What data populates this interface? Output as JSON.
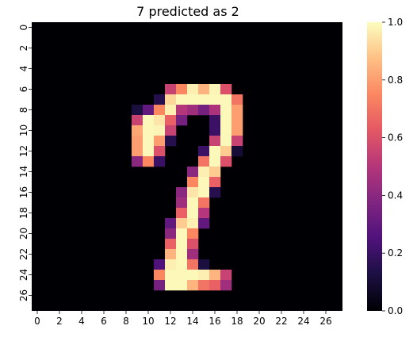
{
  "chart_data": {
    "type": "heatmap",
    "title": "7 predicted as 2",
    "rows": 28,
    "cols": 28,
    "x_tick_labels": [
      "0",
      "2",
      "4",
      "6",
      "8",
      "10",
      "12",
      "14",
      "16",
      "18",
      "20",
      "22",
      "24",
      "26"
    ],
    "y_tick_labels": [
      "0",
      "2",
      "4",
      "6",
      "8",
      "10",
      "12",
      "14",
      "16",
      "18",
      "20",
      "22",
      "24",
      "26"
    ],
    "colorbar": {
      "min": 0.0,
      "max": 1.0,
      "tick_labels": [
        "0.0",
        "0.2",
        "0.4",
        "0.6",
        "0.8",
        "1.0"
      ],
      "colormap": "magma"
    },
    "nonzero_cells": [
      {
        "row": 6,
        "col": 12,
        "value": 0.55
      },
      {
        "row": 6,
        "col": 13,
        "value": 0.75
      },
      {
        "row": 6,
        "col": 14,
        "value": 0.97
      },
      {
        "row": 6,
        "col": 15,
        "value": 0.85
      },
      {
        "row": 6,
        "col": 16,
        "value": 0.98
      },
      {
        "row": 6,
        "col": 17,
        "value": 0.6
      },
      {
        "row": 7,
        "col": 11,
        "value": 0.15
      },
      {
        "row": 7,
        "col": 12,
        "value": 0.92
      },
      {
        "row": 7,
        "col": 13,
        "value": 0.99
      },
      {
        "row": 7,
        "col": 14,
        "value": 0.99
      },
      {
        "row": 7,
        "col": 15,
        "value": 0.99
      },
      {
        "row": 7,
        "col": 16,
        "value": 0.99
      },
      {
        "row": 7,
        "col": 17,
        "value": 0.99
      },
      {
        "row": 7,
        "col": 18,
        "value": 0.7
      },
      {
        "row": 8,
        "col": 9,
        "value": 0.12
      },
      {
        "row": 8,
        "col": 10,
        "value": 0.3
      },
      {
        "row": 8,
        "col": 11,
        "value": 0.75
      },
      {
        "row": 8,
        "col": 12,
        "value": 0.97
      },
      {
        "row": 8,
        "col": 13,
        "value": 0.5
      },
      {
        "row": 8,
        "col": 14,
        "value": 0.45
      },
      {
        "row": 8,
        "col": 15,
        "value": 0.35
      },
      {
        "row": 8,
        "col": 16,
        "value": 0.48
      },
      {
        "row": 8,
        "col": 17,
        "value": 0.99
      },
      {
        "row": 8,
        "col": 18,
        "value": 0.8
      },
      {
        "row": 9,
        "col": 9,
        "value": 0.55
      },
      {
        "row": 9,
        "col": 10,
        "value": 0.99
      },
      {
        "row": 9,
        "col": 11,
        "value": 0.95
      },
      {
        "row": 9,
        "col": 12,
        "value": 0.65
      },
      {
        "row": 9,
        "col": 13,
        "value": 0.35
      },
      {
        "row": 9,
        "col": 16,
        "value": 0.2
      },
      {
        "row": 9,
        "col": 17,
        "value": 0.99
      },
      {
        "row": 9,
        "col": 18,
        "value": 0.8
      },
      {
        "row": 10,
        "col": 9,
        "value": 0.82
      },
      {
        "row": 10,
        "col": 10,
        "value": 0.99
      },
      {
        "row": 10,
        "col": 11,
        "value": 0.98
      },
      {
        "row": 10,
        "col": 12,
        "value": 0.55
      },
      {
        "row": 10,
        "col": 16,
        "value": 0.2
      },
      {
        "row": 10,
        "col": 17,
        "value": 0.99
      },
      {
        "row": 10,
        "col": 18,
        "value": 0.8
      },
      {
        "row": 11,
        "col": 9,
        "value": 0.8
      },
      {
        "row": 11,
        "col": 10,
        "value": 0.99
      },
      {
        "row": 11,
        "col": 11,
        "value": 0.8
      },
      {
        "row": 11,
        "col": 12,
        "value": 0.15
      },
      {
        "row": 11,
        "col": 16,
        "value": 0.55
      },
      {
        "row": 11,
        "col": 17,
        "value": 0.99
      },
      {
        "row": 11,
        "col": 18,
        "value": 0.55
      },
      {
        "row": 12,
        "col": 9,
        "value": 0.8
      },
      {
        "row": 12,
        "col": 10,
        "value": 0.99
      },
      {
        "row": 12,
        "col": 11,
        "value": 0.6
      },
      {
        "row": 12,
        "col": 15,
        "value": 0.2
      },
      {
        "row": 12,
        "col": 16,
        "value": 0.99
      },
      {
        "row": 12,
        "col": 17,
        "value": 0.9
      },
      {
        "row": 12,
        "col": 18,
        "value": 0.1
      },
      {
        "row": 13,
        "col": 9,
        "value": 0.4
      },
      {
        "row": 13,
        "col": 10,
        "value": 0.75
      },
      {
        "row": 13,
        "col": 11,
        "value": 0.2
      },
      {
        "row": 13,
        "col": 15,
        "value": 0.7
      },
      {
        "row": 13,
        "col": 16,
        "value": 0.99
      },
      {
        "row": 13,
        "col": 17,
        "value": 0.6
      },
      {
        "row": 14,
        "col": 14,
        "value": 0.4
      },
      {
        "row": 14,
        "col": 15,
        "value": 0.97
      },
      {
        "row": 14,
        "col": 16,
        "value": 0.9
      },
      {
        "row": 15,
        "col": 14,
        "value": 0.75
      },
      {
        "row": 15,
        "col": 15,
        "value": 0.99
      },
      {
        "row": 15,
        "col": 16,
        "value": 0.65
      },
      {
        "row": 16,
        "col": 13,
        "value": 0.4
      },
      {
        "row": 16,
        "col": 14,
        "value": 0.95
      },
      {
        "row": 16,
        "col": 15,
        "value": 0.99
      },
      {
        "row": 16,
        "col": 16,
        "value": 0.15
      },
      {
        "row": 17,
        "col": 13,
        "value": 0.45
      },
      {
        "row": 17,
        "col": 14,
        "value": 0.99
      },
      {
        "row": 17,
        "col": 15,
        "value": 0.7
      },
      {
        "row": 18,
        "col": 13,
        "value": 0.65
      },
      {
        "row": 18,
        "col": 14,
        "value": 0.99
      },
      {
        "row": 18,
        "col": 15,
        "value": 0.5
      },
      {
        "row": 19,
        "col": 12,
        "value": 0.3
      },
      {
        "row": 19,
        "col": 13,
        "value": 0.9
      },
      {
        "row": 19,
        "col": 14,
        "value": 0.97
      },
      {
        "row": 19,
        "col": 15,
        "value": 0.3
      },
      {
        "row": 20,
        "col": 12,
        "value": 0.4
      },
      {
        "row": 20,
        "col": 13,
        "value": 0.99
      },
      {
        "row": 20,
        "col": 14,
        "value": 0.75
      },
      {
        "row": 21,
        "col": 12,
        "value": 0.65
      },
      {
        "row": 21,
        "col": 13,
        "value": 0.99
      },
      {
        "row": 21,
        "col": 14,
        "value": 0.6
      },
      {
        "row": 22,
        "col": 12,
        "value": 0.85
      },
      {
        "row": 22,
        "col": 13,
        "value": 0.99
      },
      {
        "row": 22,
        "col": 14,
        "value": 0.45
      },
      {
        "row": 23,
        "col": 11,
        "value": 0.25
      },
      {
        "row": 23,
        "col": 12,
        "value": 0.97
      },
      {
        "row": 23,
        "col": 13,
        "value": 0.99
      },
      {
        "row": 23,
        "col": 14,
        "value": 0.7
      },
      {
        "row": 23,
        "col": 15,
        "value": 0.12
      },
      {
        "row": 24,
        "col": 11,
        "value": 0.75
      },
      {
        "row": 24,
        "col": 12,
        "value": 0.99
      },
      {
        "row": 24,
        "col": 13,
        "value": 0.99
      },
      {
        "row": 24,
        "col": 14,
        "value": 0.99
      },
      {
        "row": 24,
        "col": 15,
        "value": 0.97
      },
      {
        "row": 24,
        "col": 16,
        "value": 0.85
      },
      {
        "row": 24,
        "col": 17,
        "value": 0.55
      },
      {
        "row": 25,
        "col": 11,
        "value": 0.35
      },
      {
        "row": 25,
        "col": 12,
        "value": 0.99
      },
      {
        "row": 25,
        "col": 13,
        "value": 0.99
      },
      {
        "row": 25,
        "col": 14,
        "value": 0.85
      },
      {
        "row": 25,
        "col": 15,
        "value": 0.7
      },
      {
        "row": 25,
        "col": 16,
        "value": 0.65
      },
      {
        "row": 25,
        "col": 17,
        "value": 0.45
      }
    ]
  }
}
